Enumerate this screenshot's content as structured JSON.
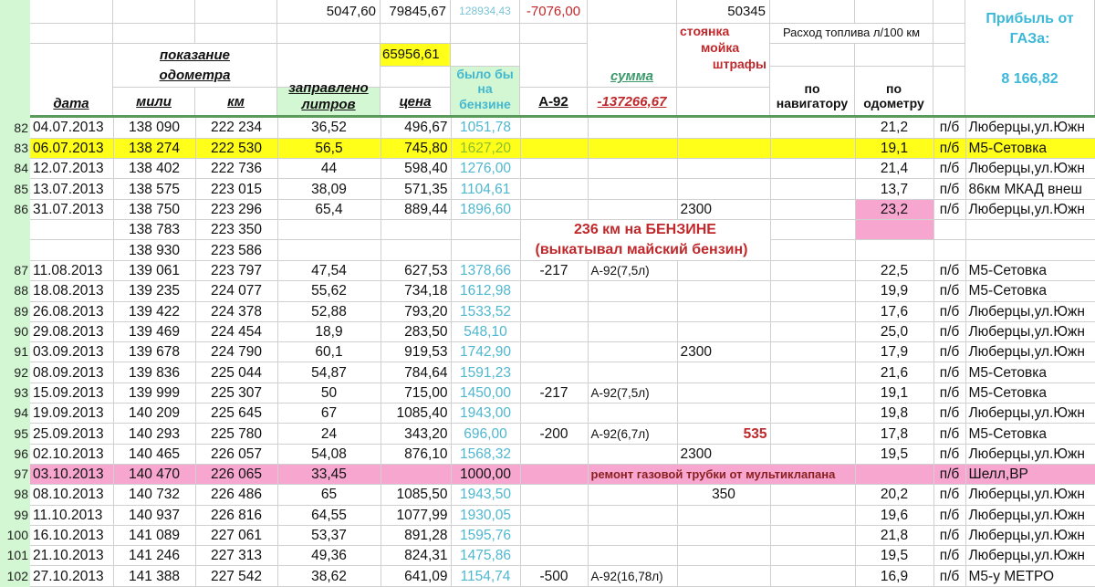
{
  "header": {
    "liters_total": "5047,60",
    "price_total": "79845,67",
    "petrol_total": "128934,43",
    "a92_total": "-7076,00",
    "stoyanka_total": "50345",
    "price_sub": "65956,61",
    "odometer_group_line1": "показание",
    "odometer_group_line2": "одометра",
    "col_date": "дата",
    "col_miles": "мили",
    "col_km": "км",
    "col_liters_line1": "заправлено",
    "col_liters_line2": "литров",
    "col_price": "цена",
    "col_petrol_line1": "было бы",
    "col_petrol_line2": "на",
    "col_petrol_line3": "бензине",
    "col_a92": "А-92",
    "col_sum": "сумма",
    "sum_total": "-137266,67",
    "stoyanka": "стоянка",
    "moyka": "мойка",
    "shtrafy": "штрафы",
    "consumption": "Расход топлива л/100 км",
    "col_nav_line1": "по",
    "col_nav_line2": "навигатору",
    "col_odo_line1": "по",
    "col_odo_line2": "одометру",
    "profit_line1": "Прибыль от",
    "profit_line2": "ГАЗа:",
    "profit_value": "8 166,82"
  },
  "colors": {
    "background": "#d3f6d3",
    "highlight_yellow": "#ffff1a",
    "highlight_pink": "#f7a6cf",
    "cyan_text": "#4fb7cf",
    "red_text": "#c0282b"
  },
  "note": {
    "line1": "236 км на БЕНЗИНЕ",
    "line2": "(выкатывал майский бензин)"
  },
  "repair_note": "ремонт газовой трубки от мультиклапана",
  "rows": [
    {
      "n": "82",
      "date": "04.07.2013",
      "miles": "138 090",
      "km": "222 234",
      "liters": "36,52",
      "price": "496,67",
      "petrol": "1051,78",
      "a92": "",
      "a92note": "",
      "stoy": "",
      "nav": "",
      "odo": "21,2",
      "pb": "п/б",
      "place": "Люберцы,ул.Южн"
    },
    {
      "n": "83",
      "date": "06.07.2013",
      "miles": "138 274",
      "km": "222 530",
      "liters": "56,5",
      "price": "745,80",
      "petrol": "1627,20",
      "a92": "",
      "a92note": "",
      "stoy": "",
      "nav": "",
      "odo": "19,1",
      "pb": "п/б",
      "place": "М5-Сетовка",
      "hl": "yel"
    },
    {
      "n": "84",
      "date": "12.07.2013",
      "miles": "138 402",
      "km": "222 736",
      "liters": "44",
      "price": "598,40",
      "petrol": "1276,00",
      "a92": "",
      "a92note": "",
      "stoy": "",
      "nav": "",
      "odo": "21,4",
      "pb": "п/б",
      "place": "Люберцы,ул.Южн"
    },
    {
      "n": "85",
      "date": "13.07.2013",
      "miles": "138 575",
      "km": "223 015",
      "liters": "38,09",
      "price": "571,35",
      "petrol": "1104,61",
      "a92": "",
      "a92note": "",
      "stoy": "",
      "nav": "",
      "odo": "13,7",
      "pb": "п/б",
      "place": "86км МКАД внеш"
    },
    {
      "n": "86",
      "date": "31.07.2013",
      "miles": "138 750",
      "km": "223 296",
      "liters": "65,4",
      "price": "889,44",
      "petrol": "1896,60",
      "a92": "",
      "a92note": "",
      "stoy": "2300",
      "nav": "",
      "odo": "23,2",
      "pb": "п/б",
      "place": "Люберцы,ул.Южн",
      "odopink": true
    },
    {
      "n": "",
      "date": "",
      "miles": "138 783",
      "km": "223 350",
      "liters": "",
      "price": "",
      "petrol": "",
      "odo": "",
      "pb": "",
      "place": "",
      "odopink": true,
      "special": "note1"
    },
    {
      "n": "",
      "date": "",
      "miles": "138 930",
      "km": "223 586",
      "liters": "",
      "price": "",
      "petrol": "",
      "odo": "",
      "pb": "",
      "place": "",
      "special": "note2"
    },
    {
      "n": "87",
      "date": "11.08.2013",
      "miles": "139 061",
      "km": "223 797",
      "liters": "47,54",
      "price": "627,53",
      "petrol": "1378,66",
      "a92": "-217",
      "a92note": "А-92(7,5л)",
      "stoy": "",
      "nav": "",
      "odo": "22,5",
      "pb": "п/б",
      "place": "М5-Сетовка"
    },
    {
      "n": "88",
      "date": "18.08.2013",
      "miles": "139 235",
      "km": "224 077",
      "liters": "55,62",
      "price": "734,18",
      "petrol": "1612,98",
      "a92": "",
      "a92note": "",
      "stoy": "",
      "nav": "",
      "odo": "19,9",
      "pb": "п/б",
      "place": "М5-Сетовка"
    },
    {
      "n": "89",
      "date": "26.08.2013",
      "miles": "139 422",
      "km": "224 378",
      "liters": "52,88",
      "price": "793,20",
      "petrol": "1533,52",
      "a92": "",
      "a92note": "",
      "stoy": "",
      "nav": "",
      "odo": "17,6",
      "pb": "п/б",
      "place": "Люберцы,ул.Южн"
    },
    {
      "n": "90",
      "date": "29.08.2013",
      "miles": "139 469",
      "km": "224 454",
      "liters": "18,9",
      "price": "283,50",
      "petrol": "548,10",
      "a92": "",
      "a92note": "",
      "stoy": "",
      "nav": "",
      "odo": "25,0",
      "pb": "п/б",
      "place": "Люберцы,ул.Южн"
    },
    {
      "n": "91",
      "date": "03.09.2013",
      "miles": "139 678",
      "km": "224 790",
      "liters": "60,1",
      "price": "919,53",
      "petrol": "1742,90",
      "a92": "",
      "a92note": "",
      "stoy": "2300",
      "nav": "",
      "odo": "17,9",
      "pb": "п/б",
      "place": "Люберцы,ул.Южн"
    },
    {
      "n": "92",
      "date": "08.09.2013",
      "miles": "139 836",
      "km": "225 044",
      "liters": "54,87",
      "price": "784,64",
      "petrol": "1591,23",
      "a92": "",
      "a92note": "",
      "stoy": "",
      "nav": "",
      "odo": "21,6",
      "pb": "п/б",
      "place": "М5-Сетовка"
    },
    {
      "n": "93",
      "date": "15.09.2013",
      "miles": "139 999",
      "km": "225 307",
      "liters": "50",
      "price": "715,00",
      "petrol": "1450,00",
      "a92": "-217",
      "a92note": "А-92(7,5л)",
      "stoy": "",
      "nav": "",
      "odo": "19,1",
      "pb": "п/б",
      "place": "М5-Сетовка"
    },
    {
      "n": "94",
      "date": "19.09.2013",
      "miles": "140 209",
      "km": "225 645",
      "liters": "67",
      "price": "1085,40",
      "petrol": "1943,00",
      "a92": "",
      "a92note": "",
      "stoy": "",
      "nav": "",
      "odo": "19,8",
      "pb": "п/б",
      "place": "Люберцы,ул.Южн"
    },
    {
      "n": "95",
      "date": "25.09.2013",
      "miles": "140 293",
      "km": "225 780",
      "liters": "24",
      "price": "343,20",
      "petrol": "696,00",
      "a92": "-200",
      "a92note": "А-92(6,7л)",
      "stoy": "535",
      "stoyred": true,
      "nav": "",
      "odo": "17,8",
      "pb": "п/б",
      "place": "М5-Сетовка"
    },
    {
      "n": "96",
      "date": "02.10.2013",
      "miles": "140 465",
      "km": "226 057",
      "liters": "54,08",
      "price": "876,10",
      "petrol": "1568,32",
      "a92": "",
      "a92note": "",
      "stoy": "2300",
      "nav": "",
      "odo": "19,5",
      "pb": "п/б",
      "place": "Люберцы,ул.Южн"
    },
    {
      "n": "97",
      "date": "03.10.2013",
      "miles": "140 470",
      "km": "226 065",
      "liters": "33,45",
      "price": "",
      "petrol": "1000,00",
      "odo": "",
      "pb": "п/б",
      "place": "Шелл,BP",
      "hl": "pink",
      "special": "repair"
    },
    {
      "n": "98",
      "date": "08.10.2013",
      "miles": "140 732",
      "km": "226 486",
      "liters": "65",
      "price": "1085,50",
      "petrol": "1943,50",
      "a92": "",
      "a92note": "",
      "stoy": "350",
      "stoyc": true,
      "nav": "",
      "odo": "20,2",
      "pb": "п/б",
      "place": "Люберцы,ул.Южн"
    },
    {
      "n": "99",
      "date": "11.10.2013",
      "miles": "140 937",
      "km": "226 816",
      "liters": "64,55",
      "price": "1077,99",
      "petrol": "1930,05",
      "a92": "",
      "a92note": "",
      "stoy": "",
      "nav": "",
      "odo": "19,6",
      "pb": "п/б",
      "place": "Люберцы,ул.Южн"
    },
    {
      "n": "100",
      "date": "16.10.2013",
      "miles": "141 089",
      "km": "227 061",
      "liters": "53,37",
      "price": "891,28",
      "petrol": "1595,76",
      "a92": "",
      "a92note": "",
      "stoy": "",
      "nav": "",
      "odo": "21,8",
      "pb": "п/б",
      "place": "Люберцы,ул.Южн"
    },
    {
      "n": "101",
      "date": "21.10.2013",
      "miles": "141 246",
      "km": "227 313",
      "liters": "49,36",
      "price": "824,31",
      "petrol": "1475,86",
      "a92": "",
      "a92note": "",
      "stoy": "",
      "nav": "",
      "odo": "19,5",
      "pb": "п/б",
      "place": "Люберцы,ул.Южн"
    },
    {
      "n": "102",
      "date": "27.10.2013",
      "miles": "141 388",
      "km": "227 542",
      "liters": "38,62",
      "price": "641,09",
      "petrol": "1154,74",
      "a92": "-500",
      "a92note": "А-92(16,78л)",
      "stoy": "",
      "nav": "",
      "odo": "16,9",
      "pb": "п/б",
      "place": "М5-у МЕТРО"
    }
  ]
}
